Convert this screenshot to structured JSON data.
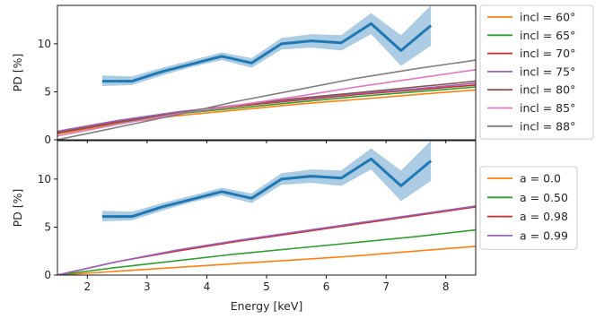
{
  "chart_data": [
    {
      "type": "line",
      "title": "",
      "xlabel": "",
      "ylabel": "PD [%]",
      "xlim": [
        1.5,
        8.5
      ],
      "ylim": [
        0,
        14
      ],
      "xticks": [
        "2",
        "3",
        "4",
        "5",
        "6",
        "7",
        "8"
      ],
      "yticks": [
        "0",
        "5",
        "10"
      ],
      "legend_position": "outside-right",
      "observed": {
        "color": "#1f77b4",
        "band_color": "#8fbbd9",
        "x": [
          2.25,
          2.75,
          3.25,
          3.75,
          4.25,
          4.75,
          5.25,
          5.75,
          6.25,
          6.75,
          7.25,
          7.75
        ],
        "y": [
          6.1,
          6.1,
          7.1,
          7.9,
          8.7,
          8.0,
          10.0,
          10.3,
          10.1,
          12.1,
          9.3,
          11.9
        ],
        "y_low": [
          5.6,
          5.7,
          6.7,
          7.6,
          8.3,
          7.5,
          9.4,
          9.6,
          9.3,
          11.0,
          7.7,
          9.8
        ],
        "y_high": [
          6.7,
          6.6,
          7.5,
          8.3,
          9.1,
          8.5,
          10.6,
          11.0,
          10.9,
          13.2,
          10.9,
          14.0
        ]
      },
      "series": [
        {
          "name": "incl = 60°",
          "color": "#ff7f0e",
          "x": [
            1.5,
            2.5,
            3.5,
            4.5,
            5.5,
            6.5,
            7.5,
            8.5
          ],
          "y": [
            0.6,
            1.7,
            2.5,
            3.1,
            3.7,
            4.2,
            4.7,
            5.2
          ]
        },
        {
          "name": "incl = 65°",
          "color": "#2ca02c",
          "x": [
            1.5,
            2.5,
            3.5,
            4.5,
            5.5,
            6.5,
            7.5,
            8.5
          ],
          "y": [
            0.7,
            1.8,
            2.7,
            3.3,
            3.9,
            4.5,
            5.0,
            5.5
          ]
        },
        {
          "name": "incl = 70°",
          "color": "#d62728",
          "x": [
            1.5,
            2.5,
            3.5,
            4.5,
            5.5,
            6.5,
            7.5,
            8.5
          ],
          "y": [
            0.8,
            1.9,
            2.8,
            3.5,
            4.1,
            4.7,
            5.2,
            5.7
          ]
        },
        {
          "name": "incl = 75°",
          "color": "#9467bd",
          "x": [
            1.5,
            2.5,
            3.5,
            4.5,
            5.5,
            6.5,
            7.5,
            8.5
          ],
          "y": [
            0.9,
            2.0,
            2.9,
            3.6,
            4.2,
            4.8,
            5.3,
            5.9
          ]
        },
        {
          "name": "incl = 80°",
          "color": "#8c564b",
          "x": [
            1.5,
            2.5,
            3.5,
            4.5,
            5.5,
            6.5,
            7.5,
            8.5
          ],
          "y": [
            0.7,
            1.8,
            2.8,
            3.6,
            4.3,
            4.9,
            5.5,
            6.1
          ]
        },
        {
          "name": "incl = 85°",
          "color": "#e377c2",
          "x": [
            1.5,
            2.5,
            3.5,
            4.5,
            5.5,
            6.5,
            7.5,
            8.5
          ],
          "y": [
            0.4,
            1.6,
            2.7,
            3.6,
            4.5,
            5.5,
            6.4,
            7.3
          ]
        },
        {
          "name": "incl = 88°",
          "color": "#7f7f7f",
          "x": [
            1.5,
            2.5,
            3.5,
            4.5,
            5.5,
            6.5,
            7.5,
            8.5
          ],
          "y": [
            0.0,
            1.3,
            2.6,
            4.0,
            5.2,
            6.4,
            7.4,
            8.3
          ]
        }
      ]
    },
    {
      "type": "line",
      "title": "",
      "xlabel": "Energy [keV]",
      "ylabel": "PD [%]",
      "xlim": [
        1.5,
        8.5
      ],
      "ylim": [
        0,
        14
      ],
      "xticks": [
        "2",
        "3",
        "4",
        "5",
        "6",
        "7",
        "8"
      ],
      "yticks": [
        "0",
        "5",
        "10"
      ],
      "legend_position": "outside-right",
      "observed": {
        "color": "#1f77b4",
        "band_color": "#8fbbd9",
        "x": [
          2.25,
          2.75,
          3.25,
          3.75,
          4.25,
          4.75,
          5.25,
          5.75,
          6.25,
          6.75,
          7.25,
          7.75
        ],
        "y": [
          6.1,
          6.1,
          7.1,
          7.9,
          8.7,
          8.0,
          10.0,
          10.3,
          10.1,
          12.1,
          9.3,
          11.9
        ],
        "y_low": [
          5.6,
          5.7,
          6.7,
          7.6,
          8.3,
          7.5,
          9.4,
          9.6,
          9.3,
          11.0,
          7.7,
          9.8
        ],
        "y_high": [
          6.7,
          6.6,
          7.5,
          8.3,
          9.1,
          8.5,
          10.6,
          11.0,
          10.9,
          13.2,
          10.9,
          14.0
        ]
      },
      "series": [
        {
          "name": "a = 0.0",
          "color": "#ff7f0e",
          "x": [
            1.5,
            2.5,
            3.5,
            4.5,
            5.5,
            6.5,
            7.5,
            8.5
          ],
          "y": [
            0.0,
            0.4,
            0.8,
            1.2,
            1.6,
            2.0,
            2.5,
            3.0
          ]
        },
        {
          "name": "a = 0.50",
          "color": "#2ca02c",
          "x": [
            1.5,
            2.5,
            3.5,
            4.5,
            5.5,
            6.5,
            7.5,
            8.5
          ],
          "y": [
            0.0,
            0.8,
            1.5,
            2.2,
            2.8,
            3.4,
            4.0,
            4.7
          ]
        },
        {
          "name": "a = 0.98",
          "color": "#d62728",
          "x": [
            1.5,
            2.5,
            3.5,
            4.5,
            5.5,
            6.5,
            7.5,
            8.5
          ],
          "y": [
            0.0,
            1.4,
            2.5,
            3.5,
            4.4,
            5.3,
            6.2,
            7.1
          ]
        },
        {
          "name": "a = 0.99",
          "color": "#9467bd",
          "x": [
            1.5,
            2.5,
            3.5,
            4.5,
            5.5,
            6.5,
            7.5,
            8.5
          ],
          "y": [
            0.0,
            1.4,
            2.6,
            3.6,
            4.5,
            5.4,
            6.3,
            7.2
          ]
        }
      ]
    }
  ]
}
